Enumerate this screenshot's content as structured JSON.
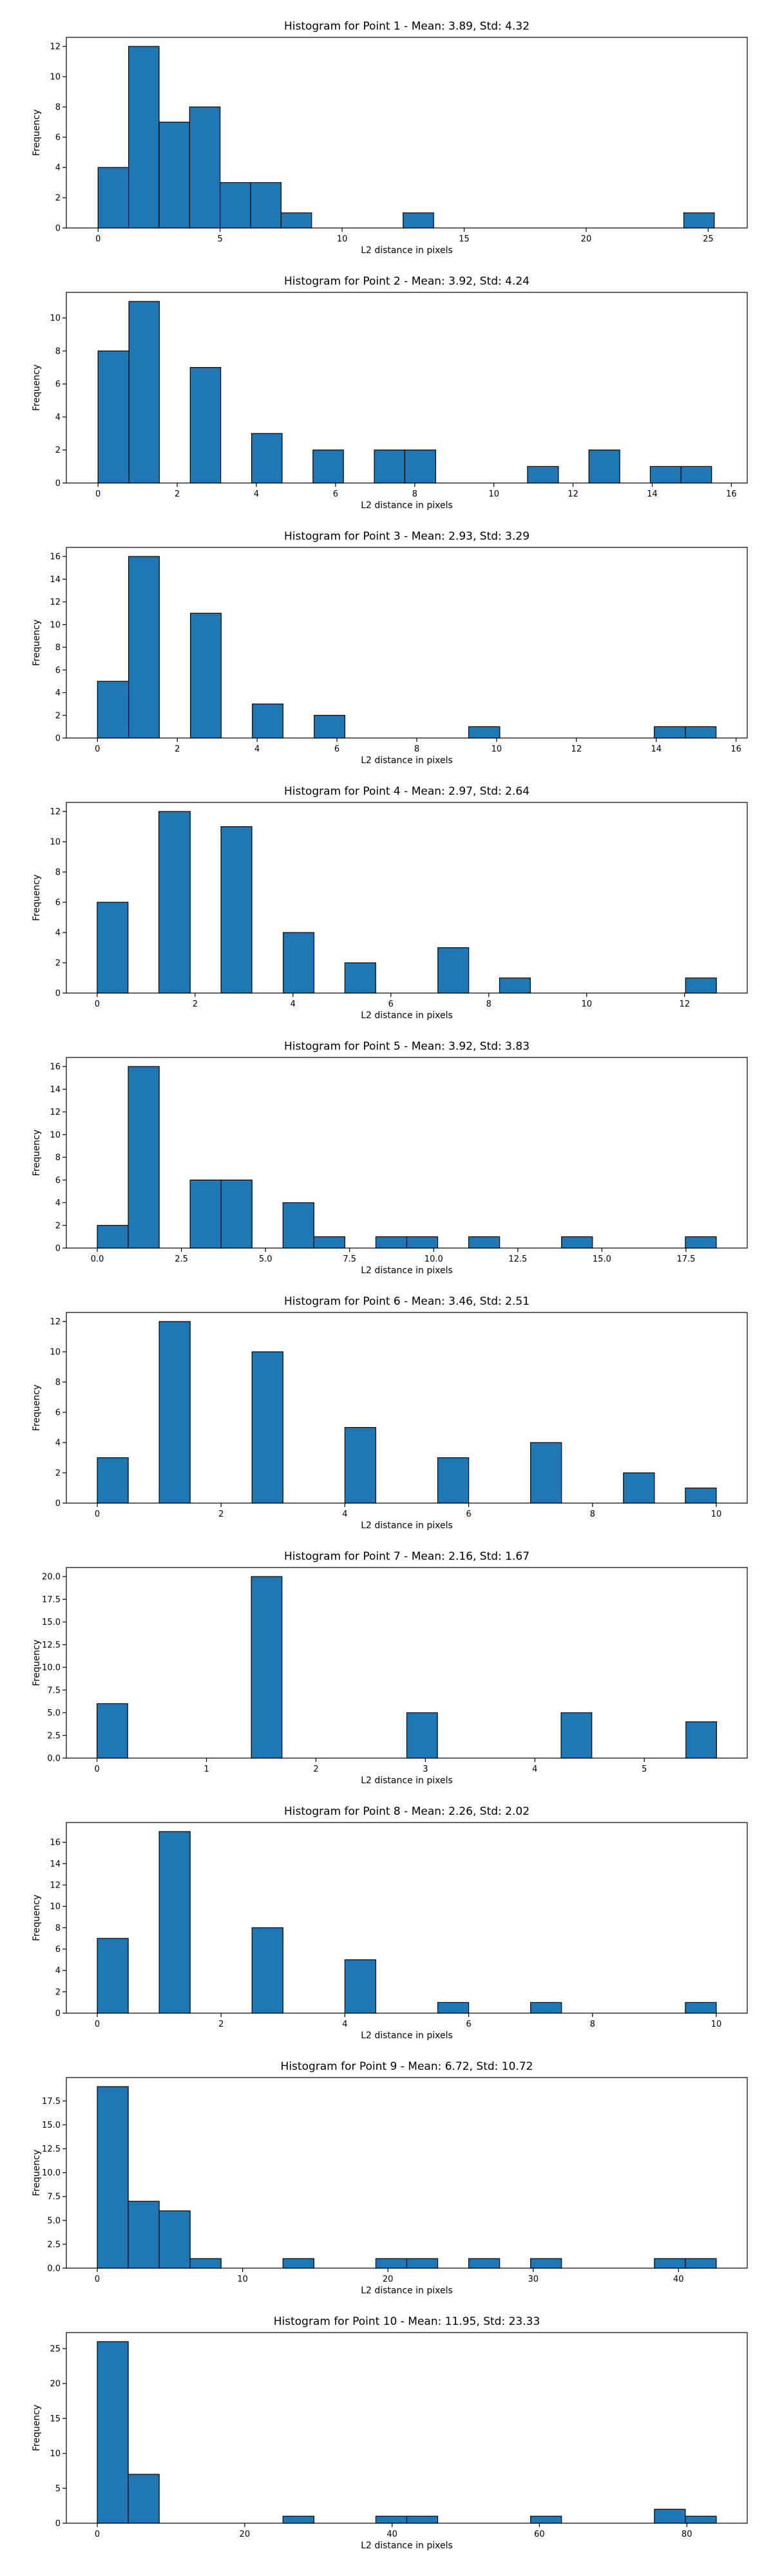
{
  "chart_data": [
    {
      "type": "bar",
      "title": "Histogram for Point 1 - Mean: 3.89, Std: 4.32",
      "xlabel": "L2 distance in pixels",
      "ylabel": "Frequency",
      "xlim": [
        -1.3,
        26.6
      ],
      "ylim": [
        0,
        12.6
      ],
      "xticks": [
        0,
        5,
        10,
        15,
        20,
        25
      ],
      "xticklabels": [
        "0",
        "5",
        "10",
        "15",
        "20",
        "25"
      ],
      "yticks": [
        0,
        2,
        4,
        6,
        8,
        10,
        12
      ],
      "yticklabels": [
        "0",
        "2",
        "4",
        "6",
        "8",
        "10",
        "12"
      ],
      "bins": [
        {
          "x0": 0.0,
          "x1": 1.25,
          "count": 4
        },
        {
          "x0": 1.25,
          "x1": 2.5,
          "count": 12
        },
        {
          "x0": 2.5,
          "x1": 3.75,
          "count": 7
        },
        {
          "x0": 3.75,
          "x1": 5.0,
          "count": 8
        },
        {
          "x0": 5.0,
          "x1": 6.25,
          "count": 3
        },
        {
          "x0": 6.25,
          "x1": 7.5,
          "count": 3
        },
        {
          "x0": 7.5,
          "x1": 8.75,
          "count": 1
        },
        {
          "x0": 12.5,
          "x1": 13.75,
          "count": 1
        },
        {
          "x0": 24.0,
          "x1": 25.25,
          "count": 1
        }
      ]
    },
    {
      "type": "bar",
      "title": "Histogram for Point 2 - Mean: 3.92, Std: 4.24",
      "xlabel": "L2 distance in pixels",
      "ylabel": "Frequency",
      "xlim": [
        -0.8,
        16.4
      ],
      "ylim": [
        0,
        11.55
      ],
      "xticks": [
        0,
        2,
        4,
        6,
        8,
        10,
        12,
        14,
        16
      ],
      "xticklabels": [
        "0",
        "2",
        "4",
        "6",
        "8",
        "10",
        "12",
        "14",
        "16"
      ],
      "yticks": [
        0,
        2,
        4,
        6,
        8,
        10
      ],
      "yticklabels": [
        "0",
        "2",
        "4",
        "6",
        "8",
        "10"
      ],
      "bins": [
        {
          "x0": 0.0,
          "x1": 0.78,
          "count": 8
        },
        {
          "x0": 0.78,
          "x1": 1.55,
          "count": 11
        },
        {
          "x0": 2.33,
          "x1": 3.1,
          "count": 7
        },
        {
          "x0": 3.88,
          "x1": 4.65,
          "count": 3
        },
        {
          "x0": 5.43,
          "x1": 6.2,
          "count": 2
        },
        {
          "x0": 6.98,
          "x1": 7.75,
          "count": 2
        },
        {
          "x0": 7.75,
          "x1": 8.53,
          "count": 2
        },
        {
          "x0": 10.85,
          "x1": 11.63,
          "count": 1
        },
        {
          "x0": 12.4,
          "x1": 13.18,
          "count": 2
        },
        {
          "x0": 13.95,
          "x1": 14.73,
          "count": 1
        },
        {
          "x0": 14.73,
          "x1": 15.5,
          "count": 1
        }
      ]
    },
    {
      "type": "bar",
      "title": "Histogram for Point 3 - Mean: 2.93, Std: 3.29",
      "xlabel": "L2 distance in pixels",
      "ylabel": "Frequency",
      "xlim": [
        -0.78,
        16.28
      ],
      "ylim": [
        0,
        16.8
      ],
      "xticks": [
        0,
        2,
        4,
        6,
        8,
        10,
        12,
        14,
        16
      ],
      "xticklabels": [
        "0",
        "2",
        "4",
        "6",
        "8",
        "10",
        "12",
        "14",
        "16"
      ],
      "yticks": [
        0,
        2,
        4,
        6,
        8,
        10,
        12,
        14,
        16
      ],
      "yticklabels": [
        "0",
        "2",
        "4",
        "6",
        "8",
        "10",
        "12",
        "14",
        "16"
      ],
      "bins": [
        {
          "x0": 0.0,
          "x1": 0.78,
          "count": 5
        },
        {
          "x0": 0.78,
          "x1": 1.55,
          "count": 16
        },
        {
          "x0": 2.33,
          "x1": 3.1,
          "count": 11
        },
        {
          "x0": 3.88,
          "x1": 4.65,
          "count": 3
        },
        {
          "x0": 5.43,
          "x1": 6.2,
          "count": 2
        },
        {
          "x0": 9.3,
          "x1": 10.08,
          "count": 1
        },
        {
          "x0": 13.95,
          "x1": 14.73,
          "count": 1
        },
        {
          "x0": 14.73,
          "x1": 15.5,
          "count": 1
        }
      ]
    },
    {
      "type": "bar",
      "title": "Histogram for Point 4 - Mean: 2.97, Std: 2.64",
      "xlabel": "L2 distance in pixels",
      "ylabel": "Frequency",
      "xlim": [
        -0.63,
        13.28
      ],
      "ylim": [
        0,
        12.6
      ],
      "xticks": [
        0,
        2,
        4,
        6,
        8,
        10,
        12
      ],
      "xticklabels": [
        "0",
        "2",
        "4",
        "6",
        "8",
        "10",
        "12"
      ],
      "yticks": [
        0,
        2,
        4,
        6,
        8,
        10,
        12
      ],
      "yticklabels": [
        "0",
        "2",
        "4",
        "6",
        "8",
        "10",
        "12"
      ],
      "bins": [
        {
          "x0": 0.0,
          "x1": 0.63,
          "count": 6
        },
        {
          "x0": 1.26,
          "x1": 1.9,
          "count": 12
        },
        {
          "x0": 2.53,
          "x1": 3.16,
          "count": 11
        },
        {
          "x0": 3.8,
          "x1": 4.43,
          "count": 4
        },
        {
          "x0": 5.06,
          "x1": 5.69,
          "count": 2
        },
        {
          "x0": 6.96,
          "x1": 7.59,
          "count": 3
        },
        {
          "x0": 8.22,
          "x1": 8.85,
          "count": 1
        },
        {
          "x0": 12.02,
          "x1": 12.65,
          "count": 1
        }
      ]
    },
    {
      "type": "bar",
      "title": "Histogram for Point 5 - Mean: 3.92, Std: 3.83",
      "xlabel": "L2 distance in pixels",
      "ylabel": "Frequency",
      "xlim": [
        -0.92,
        19.32
      ],
      "ylim": [
        0,
        16.8
      ],
      "xticks": [
        0,
        2.5,
        5,
        7.5,
        10,
        12.5,
        15,
        17.5
      ],
      "xticklabels": [
        "0.0",
        "2.5",
        "5.0",
        "7.5",
        "10.0",
        "12.5",
        "15.0",
        "17.5"
      ],
      "yticks": [
        0,
        2,
        4,
        6,
        8,
        10,
        12,
        14,
        16
      ],
      "yticklabels": [
        "0",
        "2",
        "4",
        "6",
        "8",
        "10",
        "12",
        "14",
        "16"
      ],
      "bins": [
        {
          "x0": 0.0,
          "x1": 0.92,
          "count": 2
        },
        {
          "x0": 0.92,
          "x1": 1.84,
          "count": 16
        },
        {
          "x0": 2.76,
          "x1": 3.68,
          "count": 6
        },
        {
          "x0": 3.68,
          "x1": 4.6,
          "count": 6
        },
        {
          "x0": 5.52,
          "x1": 6.44,
          "count": 4
        },
        {
          "x0": 6.44,
          "x1": 7.36,
          "count": 1
        },
        {
          "x0": 8.28,
          "x1": 9.2,
          "count": 1
        },
        {
          "x0": 9.2,
          "x1": 10.12,
          "count": 1
        },
        {
          "x0": 11.04,
          "x1": 11.96,
          "count": 1
        },
        {
          "x0": 13.8,
          "x1": 14.72,
          "count": 1
        },
        {
          "x0": 17.48,
          "x1": 18.4,
          "count": 1
        }
      ]
    },
    {
      "type": "bar",
      "title": "Histogram for Point 6 - Mean: 3.46, Std: 2.51",
      "xlabel": "L2 distance in pixels",
      "ylabel": "Frequency",
      "xlim": [
        -0.5,
        10.5
      ],
      "ylim": [
        0,
        12.6
      ],
      "xticks": [
        0,
        2,
        4,
        6,
        8,
        10
      ],
      "xticklabels": [
        "0",
        "2",
        "4",
        "6",
        "8",
        "10"
      ],
      "yticks": [
        0,
        2,
        4,
        6,
        8,
        10,
        12
      ],
      "yticklabels": [
        "0",
        "2",
        "4",
        "6",
        "8",
        "10",
        "12"
      ],
      "bins": [
        {
          "x0": 0.0,
          "x1": 0.5,
          "count": 3
        },
        {
          "x0": 1.0,
          "x1": 1.5,
          "count": 12
        },
        {
          "x0": 2.5,
          "x1": 3.0,
          "count": 10
        },
        {
          "x0": 4.0,
          "x1": 4.5,
          "count": 5
        },
        {
          "x0": 5.5,
          "x1": 6.0,
          "count": 3
        },
        {
          "x0": 7.0,
          "x1": 7.5,
          "count": 4
        },
        {
          "x0": 8.5,
          "x1": 9.0,
          "count": 2
        },
        {
          "x0": 9.5,
          "x1": 10.0,
          "count": 1
        }
      ]
    },
    {
      "type": "bar",
      "title": "Histogram for Point 7 - Mean: 2.16, Std: 1.67",
      "xlabel": "L2 distance in pixels",
      "ylabel": "Frequency",
      "xlim": [
        -0.28,
        5.94
      ],
      "ylim": [
        0,
        21
      ],
      "xticks": [
        0,
        1,
        2,
        3,
        4,
        5
      ],
      "xticklabels": [
        "0",
        "1",
        "2",
        "3",
        "4",
        "5"
      ],
      "yticks": [
        0,
        2.5,
        5,
        7.5,
        10,
        12.5,
        15,
        17.5,
        20
      ],
      "yticklabels": [
        "0.0",
        "2.5",
        "5.0",
        "7.5",
        "10.0",
        "12.5",
        "15.0",
        "17.5",
        "20.0"
      ],
      "bins": [
        {
          "x0": 0.0,
          "x1": 0.28,
          "count": 6
        },
        {
          "x0": 1.41,
          "x1": 1.69,
          "count": 20
        },
        {
          "x0": 2.83,
          "x1": 3.11,
          "count": 5
        },
        {
          "x0": 4.24,
          "x1": 4.52,
          "count": 5
        },
        {
          "x0": 5.38,
          "x1": 5.66,
          "count": 4
        }
      ]
    },
    {
      "type": "bar",
      "title": "Histogram for Point 8 - Mean: 2.26, Std: 2.02",
      "xlabel": "L2 distance in pixels",
      "ylabel": "Frequency",
      "xlim": [
        -0.5,
        10.5
      ],
      "ylim": [
        0,
        17.85
      ],
      "xticks": [
        0,
        2,
        4,
        6,
        8,
        10
      ],
      "xticklabels": [
        "0",
        "2",
        "4",
        "6",
        "8",
        "10"
      ],
      "yticks": [
        0,
        2,
        4,
        6,
        8,
        10,
        12,
        14,
        16
      ],
      "yticklabels": [
        "0",
        "2",
        "4",
        "6",
        "8",
        "10",
        "12",
        "14",
        "16"
      ],
      "bins": [
        {
          "x0": 0.0,
          "x1": 0.5,
          "count": 7
        },
        {
          "x0": 1.0,
          "x1": 1.5,
          "count": 17
        },
        {
          "x0": 2.5,
          "x1": 3.0,
          "count": 8
        },
        {
          "x0": 4.0,
          "x1": 4.5,
          "count": 5
        },
        {
          "x0": 5.5,
          "x1": 6.0,
          "count": 1
        },
        {
          "x0": 7.0,
          "x1": 7.5,
          "count": 1
        },
        {
          "x0": 9.5,
          "x1": 10.0,
          "count": 1
        }
      ]
    },
    {
      "type": "bar",
      "title": "Histogram for Point 9 - Mean: 6.72, Std: 10.72",
      "xlabel": "L2 distance in pixels",
      "ylabel": "Frequency",
      "xlim": [
        -2.13,
        44.73
      ],
      "ylim": [
        0,
        19.95
      ],
      "xticks": [
        0,
        10,
        20,
        30,
        40
      ],
      "xticklabels": [
        "0",
        "10",
        "20",
        "30",
        "40"
      ],
      "yticks": [
        0,
        2.5,
        5,
        7.5,
        10,
        12.5,
        15,
        17.5
      ],
      "yticklabels": [
        "0.0",
        "2.5",
        "5.0",
        "7.5",
        "10.0",
        "12.5",
        "15.0",
        "17.5"
      ],
      "bins": [
        {
          "x0": 0.0,
          "x1": 2.13,
          "count": 19
        },
        {
          "x0": 2.13,
          "x1": 4.26,
          "count": 7
        },
        {
          "x0": 4.26,
          "x1": 6.39,
          "count": 6
        },
        {
          "x0": 6.39,
          "x1": 8.52,
          "count": 1
        },
        {
          "x0": 12.78,
          "x1": 14.91,
          "count": 1
        },
        {
          "x0": 19.17,
          "x1": 21.3,
          "count": 1
        },
        {
          "x0": 21.3,
          "x1": 23.43,
          "count": 1
        },
        {
          "x0": 25.56,
          "x1": 27.69,
          "count": 1
        },
        {
          "x0": 29.82,
          "x1": 31.95,
          "count": 1
        },
        {
          "x0": 38.34,
          "x1": 40.47,
          "count": 1
        },
        {
          "x0": 40.47,
          "x1": 42.6,
          "count": 1
        }
      ]
    },
    {
      "type": "bar",
      "title": "Histogram for Point 10 - Mean: 11.95, Std: 23.33",
      "xlabel": "L2 distance in pixels",
      "ylabel": "Frequency",
      "xlim": [
        -4.2,
        88.2
      ],
      "ylim": [
        0,
        27.3
      ],
      "xticks": [
        0,
        20,
        40,
        60,
        80
      ],
      "xticklabels": [
        "0",
        "20",
        "40",
        "60",
        "80"
      ],
      "yticks": [
        0,
        5,
        10,
        15,
        20,
        25
      ],
      "yticklabels": [
        "0",
        "5",
        "10",
        "15",
        "20",
        "25"
      ],
      "bins": [
        {
          "x0": 0.0,
          "x1": 4.2,
          "count": 26
        },
        {
          "x0": 4.2,
          "x1": 8.4,
          "count": 7
        },
        {
          "x0": 25.2,
          "x1": 29.4,
          "count": 1
        },
        {
          "x0": 37.8,
          "x1": 42.0,
          "count": 1
        },
        {
          "x0": 42.0,
          "x1": 46.2,
          "count": 1
        },
        {
          "x0": 58.8,
          "x1": 63.0,
          "count": 1
        },
        {
          "x0": 75.6,
          "x1": 79.8,
          "count": 2
        },
        {
          "x0": 79.8,
          "x1": 84.0,
          "count": 1
        }
      ]
    }
  ]
}
